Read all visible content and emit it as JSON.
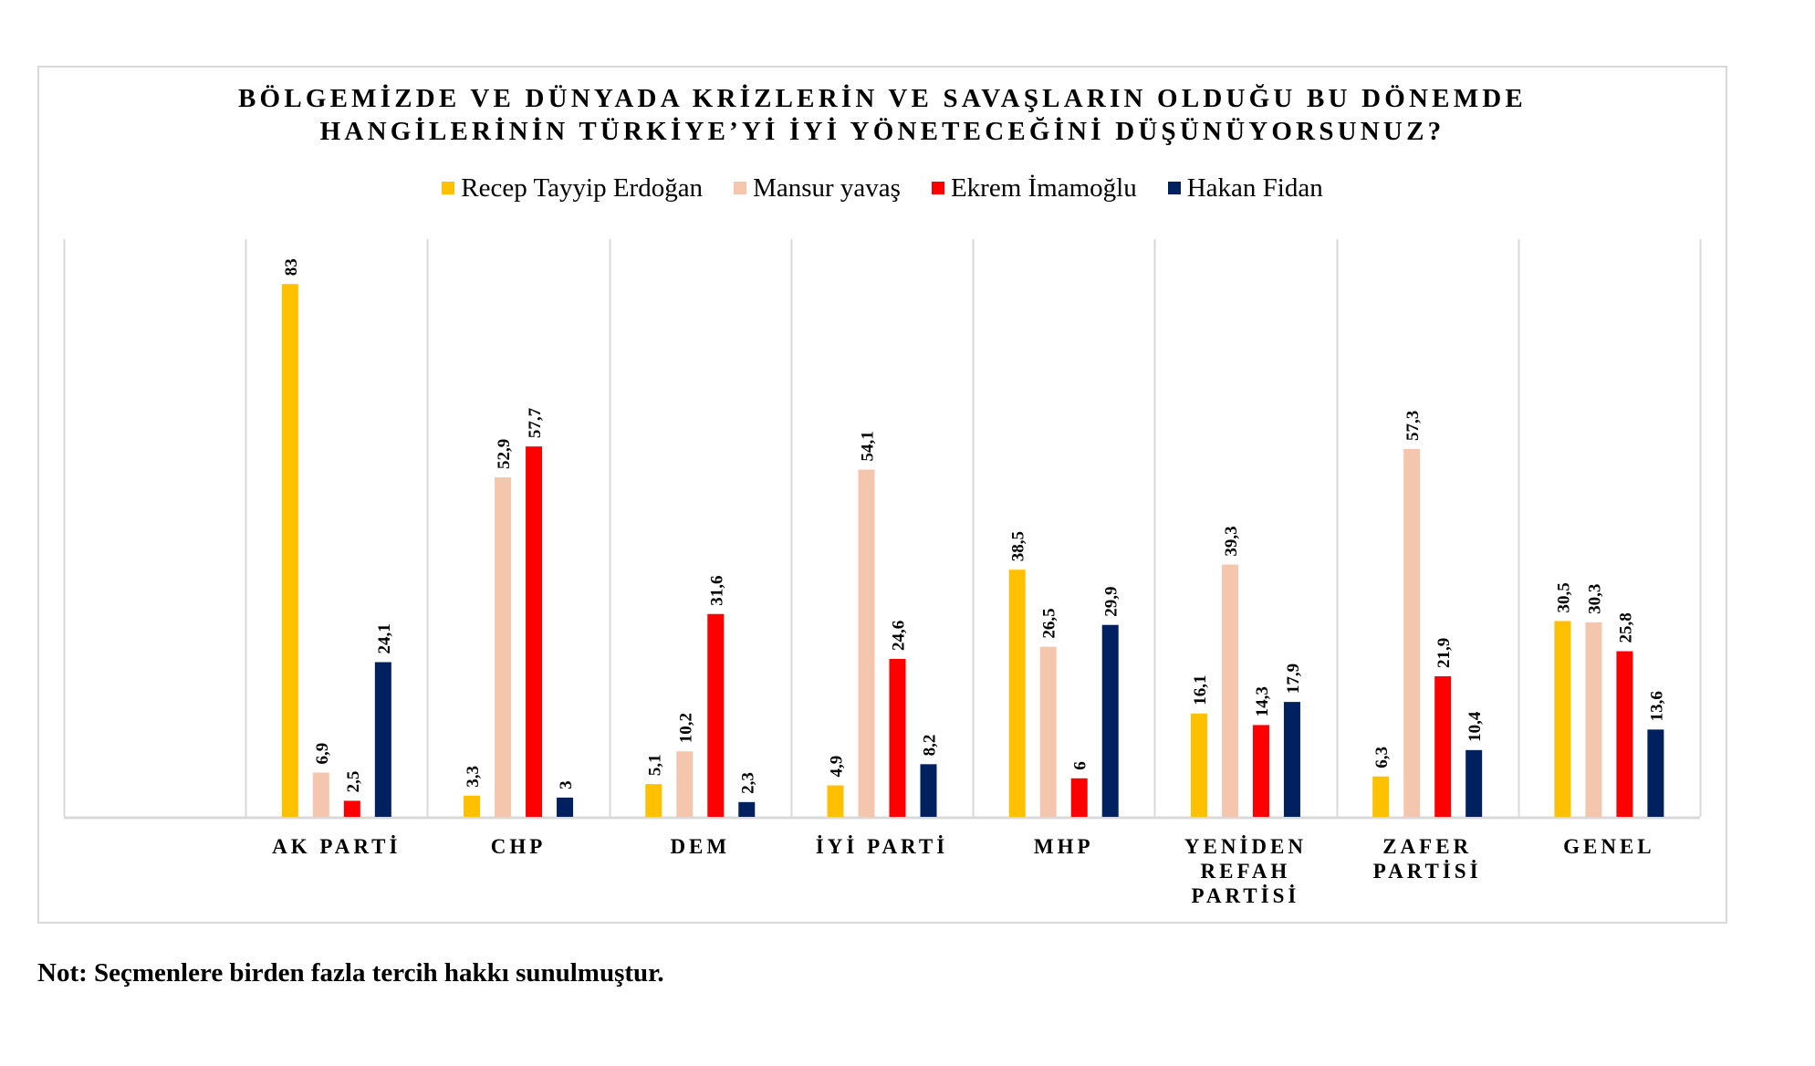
{
  "chart_data": {
    "type": "bar",
    "title_lines": [
      "BÖLGEMİZDE VE DÜNYADA KRİZLERİN VE SAVAŞLARIN OLDUĞU BU DÖNEMDE",
      "HANGİLERİNİN TÜRKİYE’Yİ İYİ YÖNETECEĞİNİ DÜŞÜNÜYORSUNUZ?"
    ],
    "xlabel": "",
    "ylabel": "",
    "ylim": [
      0,
      90
    ],
    "grid": "vertical category separators",
    "legend_position": "top-center",
    "categories": [
      "",
      [
        "AK PARTİ"
      ],
      [
        "CHP"
      ],
      [
        "DEM"
      ],
      [
        "İYİ PARTİ"
      ],
      [
        "MHP"
      ],
      [
        "YENİDEN",
        "REFAH",
        "PARTİSİ"
      ],
      [
        "ZAFER",
        "PARTİSİ"
      ],
      [
        "GENEL"
      ]
    ],
    "series": [
      {
        "name": "Recep Tayyip Erdoğan",
        "color": "#FFC000",
        "values": [
          null,
          83,
          3.3,
          5.1,
          4.9,
          38.5,
          16.1,
          6.3,
          30.5
        ],
        "labels": [
          null,
          "83",
          "3,3",
          "5,1",
          "4,9",
          "38,5",
          "16,1",
          "6,3",
          "30,5"
        ]
      },
      {
        "name": "Mansur yavaş",
        "color": "#F4C6AD",
        "values": [
          null,
          6.9,
          52.9,
          10.2,
          54.1,
          26.5,
          39.3,
          57.3,
          30.3
        ],
        "labels": [
          null,
          "6,9",
          "52,9",
          "10,2",
          "54,1",
          "26,5",
          "39,3",
          "57,3",
          "30,3"
        ]
      },
      {
        "name": "Ekrem İmamoğlu",
        "color": "#FF0000",
        "values": [
          null,
          2.5,
          57.7,
          31.6,
          24.6,
          6,
          14.3,
          21.9,
          25.8
        ],
        "labels": [
          null,
          "2,5",
          "57,7",
          "31,6",
          "24,6",
          "6",
          "14,3",
          "21,9",
          "25,8"
        ]
      },
      {
        "name": "Hakan Fidan",
        "color": "#002060",
        "values": [
          null,
          24.1,
          3,
          2.3,
          8.2,
          29.9,
          17.9,
          10.4,
          13.6
        ],
        "labels": [
          null,
          "24,1",
          "3",
          "2,3",
          "8,2",
          "29,9",
          "17,9",
          "10,4",
          "13,6"
        ]
      }
    ]
  },
  "note": "Not: Seçmenlere birden fazla tercih hakkı sunulmuştur."
}
